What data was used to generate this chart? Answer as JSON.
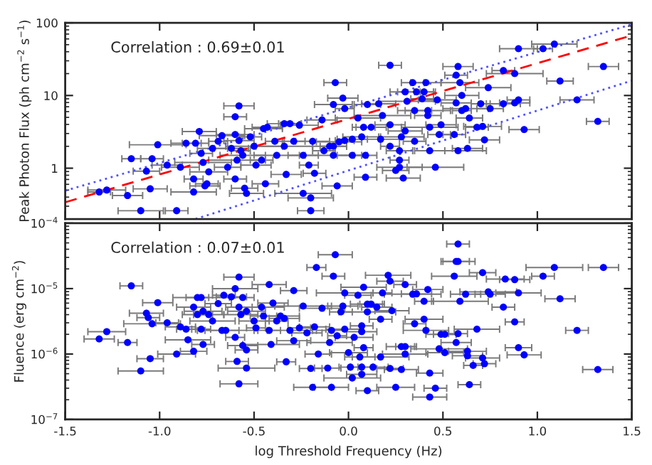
{
  "chart_data": [
    {
      "type": "scatter",
      "ylabel": "Peak Photon Flux (ph cm$^{−2}$ s$^{−1}$)",
      "xlim": [
        -1.5,
        1.5
      ],
      "xticks": [
        -1.5,
        -1.0,
        -0.5,
        0.0,
        0.5,
        1.0,
        1.5
      ],
      "tick_labels": "y",
      "ylim": [
        0.2,
        100
      ],
      "yticks": [
        1,
        10,
        100
      ],
      "log": true,
      "annotations": [
        "Correlation : 0.69±0.01"
      ],
      "series": [
        {
          "color": "#0000ff",
          "marker": "circle",
          "x": [
            -1.32,
            -1.28,
            -1.17,
            -1.15,
            -1.1,
            -1.07,
            -1.05,
            -1.04,
            -1.01,
            -0.96,
            -0.91,
            -0.89,
            -0.86,
            -0.82,
            -0.82,
            -0.81,
            -0.79,
            -0.78,
            -0.77,
            -0.76,
            -0.75,
            -0.74,
            -0.72,
            -0.69,
            -0.67,
            -0.64,
            -0.62,
            -0.6,
            -0.59,
            -0.58,
            -0.6,
            -0.6,
            -0.58,
            -0.57,
            -0.56,
            -0.55,
            -0.54,
            -0.52,
            -0.5,
            -0.49,
            -0.46,
            -0.45,
            -0.43,
            -0.39,
            -0.38,
            -0.44,
            -0.34,
            -0.31,
            -0.34,
            -0.33,
            -0.29,
            -0.26,
            -0.24,
            -0.21,
            -0.2,
            -0.2,
            -0.19,
            -0.18,
            -0.24,
            -0.14,
            -0.07,
            -0.08,
            -0.03,
            -0.02,
            0.05,
            0.1,
            0.16,
            0.22,
            0.18,
            0.12,
            0.08,
            0.07,
            0.02,
            -0.02,
            -0.05,
            -0.08,
            -0.1,
            -0.13,
            -0.08,
            0.02,
            0.09,
            0.17,
            0.22,
            0.22,
            0.28,
            0.27,
            0.3,
            0.35,
            0.31,
            0.3,
            0.34,
            0.36,
            0.41,
            0.4,
            0.42,
            0.42,
            0.35,
            0.39,
            0.43,
            0.49,
            0.48,
            0.47,
            0.43,
            0.27,
            0.27,
            0.25,
            0.29,
            0.09,
            0.46,
            0.58,
            0.57,
            0.59,
            0.57,
            0.6,
            0.62,
            0.64,
            0.6,
            0.56,
            0.58,
            0.63,
            0.68,
            0.71,
            0.72,
            0.7,
            0.74,
            0.75,
            0.82,
            0.82,
            0.88,
            0.88,
            0.9,
            0.9,
            0.93,
            1.03,
            1.09,
            1.12,
            1.21,
            1.32,
            1.35,
            -0.06
          ],
          "values": [
            0.47,
            0.5,
            0.42,
            1.35,
            0.26,
            0.91,
            0.52,
            1.35,
            2.1,
            1.1,
            0.26,
            1.03,
            2.2,
            0.71,
            0.47,
            2.2,
            3.2,
            1.6,
            1.2,
            0.57,
            0.61,
            0.89,
            1.87,
            2.34,
            2.8,
            1.03,
            1.87,
            0.71,
            1.29,
            7.2,
            5.1,
            2.9,
            2.4,
            1.74,
            1.5,
            0.53,
            0.45,
            2.7,
            2.0,
            1.1,
            1.29,
            3.5,
            3.65,
            2.34,
            1.5,
            0.61,
            4.1,
            4.1,
            2.0,
            0.82,
            2.34,
            3.9,
            1.5,
            1.1,
            0.39,
            0.26,
            2.34,
            0.85,
            0.45,
            4.6,
            15,
            7.5,
            9.2,
            6.6,
            4.9,
            7.5,
            7.7,
            26,
            5.3,
            3.65,
            3.65,
            2.7,
            2.5,
            2.4,
            2.3,
            2.0,
            2.0,
            1.74,
            1.5,
            1.5,
            1.5,
            2.5,
            3.95,
            2.0,
            2.7,
            1.74,
            3.25,
            2.34,
            8.3,
            11.2,
            15,
            11.2,
            15,
            11.2,
            6.2,
            5.3,
            6.2,
            9.0,
            3.65,
            3.95,
            2.9,
            8.7,
            1.74,
            1.29,
            1.03,
            0.93,
            0.73,
            0.75,
            1.03,
            25,
            19,
            15,
            7.9,
            6.2,
            6.6,
            4.9,
            10,
            2.9,
            1.74,
            1.87,
            3.65,
            3.75,
            2.45,
            7.7,
            12.8,
            6.6,
            7.7,
            22,
            20,
            7.9,
            8.7,
            44,
            3.4,
            44,
            51,
            15.8,
            8.7,
            4.4,
            25,
            0.57
          ],
          "xerrors": [
            0.06,
            0.1,
            0.08,
            0.05,
            0.12,
            0.07,
            0.09,
            0.06,
            0.15,
            0.08,
            0.06,
            0.1,
            0.08,
            0.05,
            0.12,
            0.07,
            0.09,
            0.06,
            0.15,
            0.08,
            0.06,
            0.1,
            0.08,
            0.05,
            0.12,
            0.07,
            0.09,
            0.06,
            0.15,
            0.08,
            0.06,
            0.1,
            0.08,
            0.05,
            0.12,
            0.07,
            0.09,
            0.06,
            0.15,
            0.08,
            0.06,
            0.1,
            0.08,
            0.05,
            0.12,
            0.07,
            0.09,
            0.06,
            0.15,
            0.08,
            0.06,
            0.1,
            0.08,
            0.05,
            0.12,
            0.07,
            0.09,
            0.06,
            0.15,
            0.08,
            0.06,
            0.1,
            0.08,
            0.05,
            0.12,
            0.07,
            0.09,
            0.06,
            0.15,
            0.08,
            0.06,
            0.1,
            0.08,
            0.05,
            0.12,
            0.07,
            0.09,
            0.06,
            0.15,
            0.08,
            0.06,
            0.1,
            0.08,
            0.05,
            0.12,
            0.07,
            0.09,
            0.06,
            0.15,
            0.08,
            0.06,
            0.1,
            0.08,
            0.05,
            0.12,
            0.07,
            0.09,
            0.06,
            0.15,
            0.08,
            0.06,
            0.1,
            0.08,
            0.05,
            0.12,
            0.07,
            0.09,
            0.06,
            0.15,
            0.08,
            0.06,
            0.1,
            0.08,
            0.05,
            0.12,
            0.07,
            0.09,
            0.06,
            0.15,
            0.08,
            0.06,
            0.1,
            0.08,
            0.05,
            0.12,
            0.07,
            0.09,
            0.06,
            0.15,
            0.08,
            0.06,
            0.1,
            0.08,
            0.05,
            0.12,
            0.07,
            0.09,
            0.06,
            0.08,
            0.08
          ]
        },
        {
          "type": "line",
          "color": "#ff0000",
          "line_style": "dashed",
          "x": [
            -1.5,
            1.5
          ],
          "values": [
            0.34,
            67
          ]
        },
        {
          "type": "line",
          "color": "#5050ff",
          "line_style": "dotted",
          "x": [
            -1.5,
            1.5
          ],
          "values": [
            0.49,
            95
          ]
        },
        {
          "type": "line",
          "color": "#5050ff",
          "line_style": "dotted",
          "x": [
            -0.81,
            1.5
          ],
          "values": [
            0.2,
            16
          ]
        }
      ]
    },
    {
      "type": "scatter",
      "xlabel": "log Threshold Frequency (Hz)",
      "ylabel": "Fluence (erg cm$^{−2}$)",
      "xlim": [
        -1.5,
        1.5
      ],
      "xticks": [
        {
          "value": -1.5,
          "label": "-1.5"
        },
        {
          "value": -1.0,
          "label": "-1.0"
        },
        {
          "value": -0.5,
          "label": "-0.5"
        },
        {
          "value": 0.0,
          "label": "0.0"
        },
        {
          "value": 0.5,
          "label": "0.5"
        },
        {
          "value": 1.0,
          "label": "1.0"
        },
        {
          "value": 1.5,
          "label": "1.5"
        }
      ],
      "ylim": [
        1e-07,
        0.0001
      ],
      "yticks": [
        {
          "value": 1e-07,
          "label": "10$^{−7}$"
        },
        {
          "value": 1e-06,
          "label": "10$^{−6}$"
        },
        {
          "value": 1e-05,
          "label": "10$^{−5}$"
        },
        {
          "value": 0.0001,
          "label": "10$^{−4}$"
        }
      ],
      "log": true,
      "annotations": [
        "Correlation : 0.07±0.01"
      ],
      "series": [
        {
          "color": "#0000ff",
          "marker": "circle",
          "x": [
            -1.15,
            -1.28,
            -1.32,
            -1.17,
            -1.1,
            -1.05,
            -1.07,
            -1.06,
            -1.04,
            -1.01,
            -0.96,
            -0.91,
            -0.89,
            -0.86,
            -0.85,
            -0.82,
            -0.82,
            -0.8,
            -0.78,
            -0.8,
            -0.77,
            -0.77,
            -0.74,
            -0.78,
            -0.72,
            -0.69,
            -0.67,
            -0.66,
            -0.65,
            -0.62,
            -0.59,
            -0.58,
            -0.58,
            -0.6,
            -0.6,
            -0.58,
            -0.57,
            -0.56,
            -0.54,
            -0.56,
            -0.54,
            -0.54,
            -0.5,
            -0.49,
            -0.46,
            -0.45,
            -0.42,
            -0.42,
            -0.41,
            -0.4,
            -0.38,
            -0.36,
            -0.34,
            -0.33,
            -0.31,
            -0.29,
            -0.29,
            -0.26,
            -0.24,
            -0.22,
            -0.2,
            -0.19,
            -0.18,
            -0.17,
            -0.14,
            -0.16,
            -0.07,
            -0.08,
            -0.02,
            -0.03,
            -0.04,
            -0.02,
            -0.09,
            -0.06,
            -0.1,
            -0.11,
            -0.09,
            0.01,
            0.02,
            0.07,
            0.07,
            0.0,
            0.06,
            0.08,
            0.08,
            0.05,
            0.1,
            0.12,
            0.1,
            0.07,
            0.07,
            0.03,
            0.15,
            0.18,
            0.21,
            0.22,
            0.23,
            0.17,
            0.17,
            0.13,
            0.1,
            0.25,
            0.28,
            0.3,
            0.3,
            0.22,
            0.28,
            0.3,
            0.34,
            0.36,
            0.35,
            0.4,
            0.42,
            0.4,
            0.41,
            0.43,
            0.43,
            0.46,
            0.48,
            0.49,
            0.51,
            0.51,
            0.57,
            0.58,
            0.56,
            0.57,
            0.58,
            0.58,
            0.59,
            0.62,
            0.64,
            0.63,
            0.63,
            0.66,
            0.68,
            0.71,
            0.71,
            0.72,
            0.74,
            0.75,
            0.82,
            0.83,
            0.88,
            0.88,
            0.9,
            0.9,
            0.93,
            1.03,
            1.09,
            1.12,
            1.21,
            1.32,
            1.35
          ],
          "values": [
            1.1e-05,
            2.2e-06,
            1.7e-06,
            1.5e-06,
            5.5e-07,
            8.5e-07,
            4.2e-06,
            3.6e-06,
            2.9e-06,
            6.1e-06,
            3e-06,
            1e-06,
            2.6e-06,
            2.4e-06,
            1.65e-06,
            1.1e-06,
            5.2e-06,
            7.3e-06,
            7.3e-06,
            4e-06,
            1.4e-06,
            4.5e-06,
            4e-06,
            2.4e-06,
            3.2e-06,
            5.9e-06,
            2.3e-06,
            7.9e-06,
            2.3e-06,
            7.5e-06,
            7.7e-07,
            3.5e-07,
            1.5e-05,
            1.8e-06,
            1e-05,
            5.2e-06,
            4e-06,
            7.3e-06,
            6.1e-07,
            1.35e-06,
            1.15e-06,
            4.5e-06,
            3.2e-06,
            2.5e-06,
            5.2e-06,
            3.8e-06,
            1.15e-05,
            2.3e-06,
            1.4e-06,
            6e-06,
            3.2e-06,
            3.8e-06,
            3.5e-06,
            7.6e-07,
            2.3e-06,
            9.3e-06,
            1.6e-06,
            2.5e-06,
            5.4e-06,
            2.1e-06,
            6e-07,
            3.1e-07,
            2.6e-06,
            2.1e-05,
            5e-06,
            1e-06,
            3.3e-05,
            1.55e-05,
            8.6e-06,
            5.4e-06,
            4.4e-06,
            2.4e-06,
            2.3e-06,
            1.9e-06,
            1.5e-06,
            6.1e-07,
            3.1e-07,
            6.3e-07,
            4.3e-07,
            4.9e-07,
            6.3e-07,
            1.05e-06,
            9e-07,
            1.25e-06,
            1.05e-05,
            7.9e-06,
            5.8e-06,
            5.8e-06,
            4.4e-06,
            2.2e-06,
            2.7e-06,
            1.8e-06,
            5.2e-06,
            8.6e-06,
            1.6e-05,
            1.3e-05,
            4.6e-06,
            3.4e-06,
            9e-07,
            6.3e-07,
            2.75e-07,
            3.1e-07,
            1.3e-06,
            1.3e-06,
            1e-06,
            6e-07,
            5.8e-07,
            1.15e-05,
            8.2e-06,
            8.3e-06,
            2.9e-06,
            3.4e-06,
            9.7e-06,
            6.4e-06,
            2.3e-06,
            5.1e-07,
            2.2e-07,
            3e-07,
            1.2e-06,
            2e-06,
            2e-06,
            1.05e-06,
            1.5e-06,
            2.05e-06,
            1.55e-05,
            2.6e-05,
            2.6e-05,
            4.8e-05,
            6.4e-06,
            8.2e-06,
            3.4e-07,
            1.1e-06,
            9.4e-07,
            6.7e-07,
            2.4e-06,
            1.75e-05,
            8.7e-07,
            7.1e-07,
            8.9e-06,
            8.2e-06,
            5.2e-06,
            1.4e-05,
            1.37e-05,
            3.1e-06,
            8.6e-06,
            1.25e-06,
            9.7e-07,
            1.55e-05,
            2.1e-05,
            7e-06,
            2.3e-06,
            5.8e-07,
            2.1e-05
          ],
          "xerrors": [
            0.06,
            0.1,
            0.08,
            0.05,
            0.12,
            0.07,
            0.09,
            0.06,
            0.15,
            0.08,
            0.06,
            0.1,
            0.08,
            0.05,
            0.12,
            0.07,
            0.09,
            0.06,
            0.15,
            0.08,
            0.06,
            0.1,
            0.08,
            0.05,
            0.12,
            0.07,
            0.09,
            0.06,
            0.15,
            0.08,
            0.06,
            0.1,
            0.08,
            0.05,
            0.12,
            0.07,
            0.09,
            0.06,
            0.15,
            0.08,
            0.06,
            0.1,
            0.08,
            0.05,
            0.12,
            0.07,
            0.09,
            0.06,
            0.15,
            0.08,
            0.06,
            0.1,
            0.08,
            0.05,
            0.12,
            0.07,
            0.09,
            0.06,
            0.15,
            0.08,
            0.06,
            0.1,
            0.08,
            0.05,
            0.12,
            0.07,
            0.09,
            0.06,
            0.15,
            0.08,
            0.06,
            0.1,
            0.08,
            0.05,
            0.12,
            0.07,
            0.09,
            0.06,
            0.15,
            0.08,
            0.06,
            0.1,
            0.08,
            0.05,
            0.12,
            0.07,
            0.09,
            0.06,
            0.15,
            0.08,
            0.06,
            0.1,
            0.08,
            0.05,
            0.12,
            0.07,
            0.09,
            0.06,
            0.15,
            0.08,
            0.06,
            0.1,
            0.08,
            0.05,
            0.12,
            0.07,
            0.09,
            0.06,
            0.15,
            0.08,
            0.06,
            0.1,
            0.08,
            0.05,
            0.12,
            0.07,
            0.09,
            0.06,
            0.15,
            0.08,
            0.06,
            0.1,
            0.08,
            0.05,
            0.12,
            0.07,
            0.09,
            0.06,
            0.15,
            0.08,
            0.06,
            0.1,
            0.08,
            0.05,
            0.12,
            0.07,
            0.09,
            0.06,
            0.15,
            0.08,
            0.06,
            0.1,
            0.08,
            0.05,
            0.12,
            0.07,
            0.09,
            0.06,
            0.15,
            0.08,
            0.06,
            0.08,
            0.08
          ]
        }
      ]
    }
  ]
}
